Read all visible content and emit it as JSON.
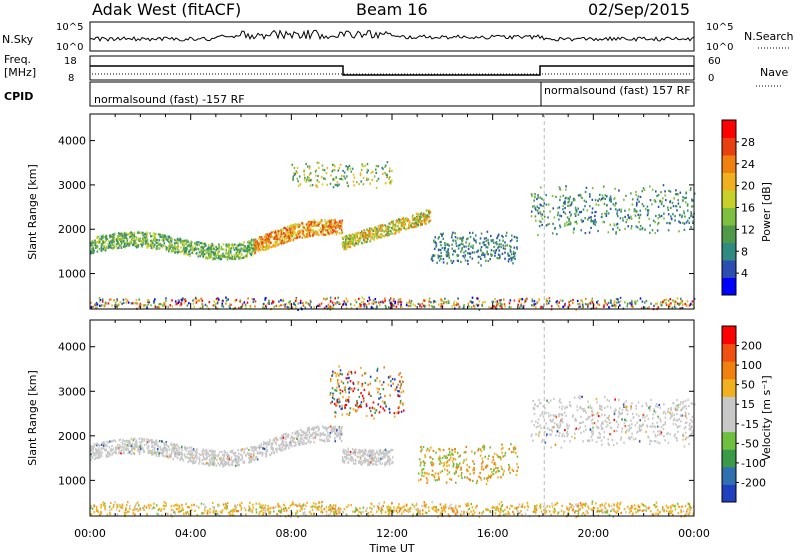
{
  "header": {
    "station": "Adak West (fitACF)",
    "beam": "Beam 16",
    "date": "02/Sep/2015"
  },
  "top_panels": {
    "nsky_label": "N.Sky",
    "nsky_ticks": [
      "10^5",
      "10^0"
    ],
    "nsky_right_ticks": [
      "10^5",
      "10^0"
    ],
    "nsearch_label": "N.Search",
    "freq_label_1": "Freq.",
    "freq_label_2": "[MHz]",
    "freq_ticks": [
      "18",
      "8"
    ],
    "nave_ticks": [
      "60",
      "0"
    ],
    "nave_label": "Nave",
    "cpid_label": "CPID",
    "cpid_segments": [
      "normalsound (fast) -157 RF",
      "normalsound (fast) 157 RF"
    ]
  },
  "chart_data": [
    {
      "type": "heatmap",
      "name": "power",
      "ylabel": "Slant Range [km]",
      "ylim": [
        200,
        4600
      ],
      "yticks": [
        1000,
        2000,
        3000,
        4000
      ],
      "xlim_hours": [
        0,
        24
      ],
      "colorbar": {
        "label": "Power [dB]",
        "ticks": [
          "28",
          "24",
          "20",
          "16",
          "12",
          "8",
          "4"
        ],
        "colors": [
          "#0000ff",
          "#2b4fb0",
          "#2f8a80",
          "#4f9a4a",
          "#7fbf3f",
          "#c8d02a",
          "#f0b020",
          "#f08010",
          "#e84010",
          "#ff0000"
        ]
      }
    },
    {
      "type": "heatmap",
      "name": "velocity",
      "ylabel": "Slant Range [km]",
      "ylim": [
        200,
        4600
      ],
      "yticks": [
        1000,
        2000,
        3000,
        4000
      ],
      "xlim_hours": [
        0,
        24
      ],
      "xlabel": "Time UT",
      "xticks": [
        "00:00",
        "04:00",
        "08:00",
        "12:00",
        "16:00",
        "20:00",
        "00:00"
      ],
      "colorbar": {
        "label": "Velocity [m s⁻¹]",
        "ticks": [
          "200",
          "100",
          "50",
          "15",
          "-15",
          "-50",
          "-100",
          "-200"
        ],
        "colors": [
          "#2040c0",
          "#3070b0",
          "#3a9a4a",
          "#70c040",
          "#c8c8c8",
          "#c8c8c8",
          "#f0b020",
          "#f08010",
          "#f05010",
          "#ff0000"
        ]
      }
    }
  ]
}
